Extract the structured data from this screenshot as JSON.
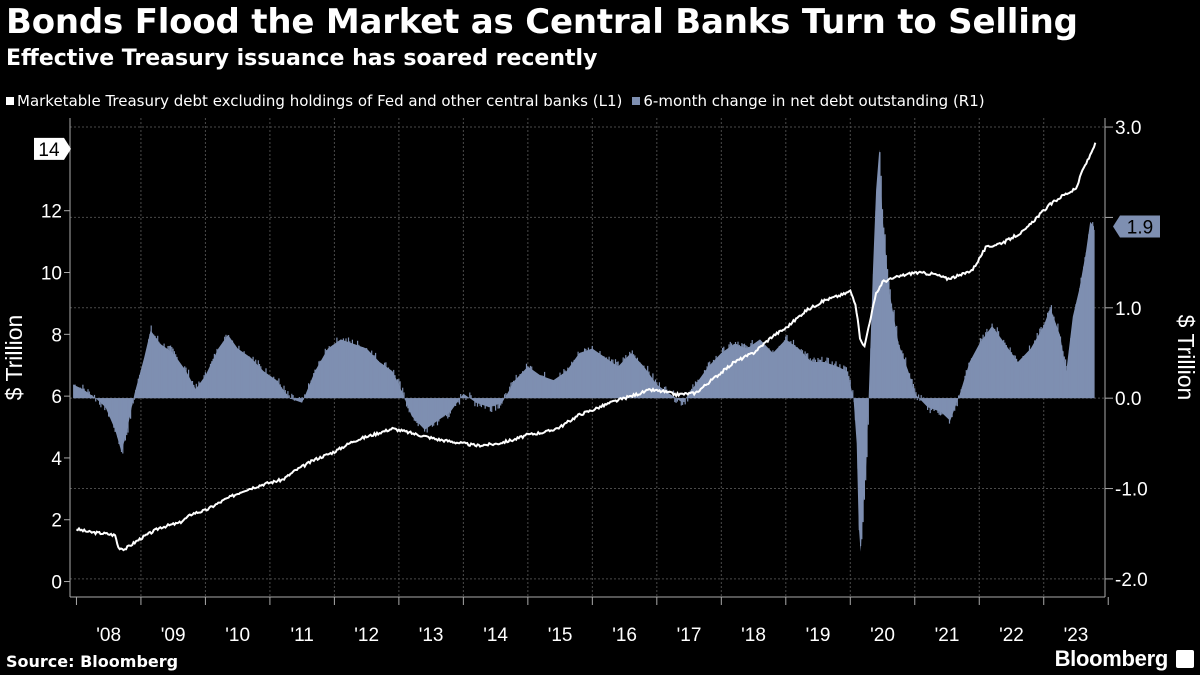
{
  "header": {
    "title": "Bonds Flood the Market as Central Banks Turn to Selling",
    "subtitle": "Effective Treasury issuance has soared recently"
  },
  "footer": {
    "source": "Source: Bloomberg",
    "brand": "Bloomberg"
  },
  "colors": {
    "background": "#000000",
    "line": "#ffffff",
    "area": "#7e8fb1",
    "grid": "#555555"
  },
  "chart_data": {
    "type": "line",
    "title": "Bonds Flood the Market as Central Banks Turn to Selling",
    "subtitle": "Effective Treasury issuance has soared recently",
    "x_ticks": [
      "'08",
      "'09",
      "'10",
      "'11",
      "'12",
      "'13",
      "'14",
      "'15",
      "'16",
      "'17",
      "'18",
      "'19",
      "'20",
      "'21",
      "'22",
      "'23"
    ],
    "x_range": [
      2007.9,
      2023.95
    ],
    "y_left": {
      "label": "$ Trillion",
      "range": [
        -0.5,
        15
      ],
      "ticks": [
        0,
        2,
        4,
        6,
        8,
        10,
        12,
        14
      ]
    },
    "y_right": {
      "label": "$ Trillion",
      "range": [
        -2.2,
        3.1
      ],
      "ticks": [
        -2.0,
        -1.0,
        0.0,
        1.0,
        2.0,
        3.0
      ],
      "tick_labels": [
        "-2.0",
        "-1.0",
        "0.0",
        "1.0",
        "",
        "3.0"
      ]
    },
    "grid": true,
    "legend_position": "top-left",
    "series": [
      {
        "name": "Marketable Treasury debt excluding holdings of Fed and other central banks (L1)",
        "axis": "left",
        "style": "line",
        "color": "#ffffff",
        "last_value_label": "14",
        "points": [
          [
            2008.0,
            1.7
          ],
          [
            2008.2,
            1.6
          ],
          [
            2008.45,
            1.55
          ],
          [
            2008.6,
            1.5
          ],
          [
            2008.65,
            1.1
          ],
          [
            2008.75,
            1.05
          ],
          [
            2009.0,
            1.4
          ],
          [
            2009.3,
            1.75
          ],
          [
            2009.6,
            1.9
          ],
          [
            2009.8,
            2.2
          ],
          [
            2010.0,
            2.3
          ],
          [
            2010.3,
            2.65
          ],
          [
            2010.6,
            2.95
          ],
          [
            2010.9,
            3.15
          ],
          [
            2011.2,
            3.3
          ],
          [
            2011.4,
            3.6
          ],
          [
            2011.7,
            3.95
          ],
          [
            2012.0,
            4.2
          ],
          [
            2012.3,
            4.55
          ],
          [
            2012.6,
            4.75
          ],
          [
            2012.9,
            4.95
          ],
          [
            2013.1,
            4.85
          ],
          [
            2013.3,
            4.75
          ],
          [
            2013.6,
            4.6
          ],
          [
            2013.9,
            4.5
          ],
          [
            2014.2,
            4.4
          ],
          [
            2014.5,
            4.45
          ],
          [
            2014.8,
            4.6
          ],
          [
            2015.0,
            4.75
          ],
          [
            2015.3,
            4.85
          ],
          [
            2015.5,
            5.0
          ],
          [
            2015.8,
            5.4
          ],
          [
            2016.0,
            5.55
          ],
          [
            2016.3,
            5.8
          ],
          [
            2016.6,
            6.0
          ],
          [
            2016.9,
            6.2
          ],
          [
            2017.1,
            6.15
          ],
          [
            2017.3,
            6.05
          ],
          [
            2017.6,
            6.1
          ],
          [
            2017.9,
            6.6
          ],
          [
            2018.2,
            7.1
          ],
          [
            2018.5,
            7.4
          ],
          [
            2018.8,
            7.95
          ],
          [
            2019.0,
            8.2
          ],
          [
            2019.3,
            8.75
          ],
          [
            2019.6,
            9.1
          ],
          [
            2019.9,
            9.3
          ],
          [
            2020.0,
            9.4
          ],
          [
            2020.08,
            9.0
          ],
          [
            2020.15,
            7.9
          ],
          [
            2020.22,
            7.6
          ],
          [
            2020.3,
            8.4
          ],
          [
            2020.4,
            9.3
          ],
          [
            2020.5,
            9.7
          ],
          [
            2020.8,
            9.9
          ],
          [
            2021.0,
            10.0
          ],
          [
            2021.3,
            9.95
          ],
          [
            2021.5,
            9.8
          ],
          [
            2021.7,
            9.9
          ],
          [
            2021.9,
            10.1
          ],
          [
            2022.1,
            10.8
          ],
          [
            2022.4,
            11.0
          ],
          [
            2022.7,
            11.35
          ],
          [
            2022.9,
            11.8
          ],
          [
            2023.1,
            12.2
          ],
          [
            2023.3,
            12.5
          ],
          [
            2023.5,
            12.7
          ],
          [
            2023.6,
            13.3
          ],
          [
            2023.7,
            13.7
          ],
          [
            2023.8,
            14.2
          ]
        ]
      },
      {
        "name": "6-month change in net debt outstanding (R1)",
        "axis": "right",
        "style": "area",
        "color": "#7e8fb1",
        "last_value_label": "1.9",
        "points": [
          [
            2007.95,
            0.15
          ],
          [
            2008.1,
            0.1
          ],
          [
            2008.3,
            0.0
          ],
          [
            2008.45,
            -0.1
          ],
          [
            2008.6,
            -0.35
          ],
          [
            2008.7,
            -0.6
          ],
          [
            2008.8,
            -0.3
          ],
          [
            2008.9,
            0.05
          ],
          [
            2009.05,
            0.45
          ],
          [
            2009.15,
            0.75
          ],
          [
            2009.3,
            0.6
          ],
          [
            2009.5,
            0.5
          ],
          [
            2009.7,
            0.3
          ],
          [
            2009.85,
            0.1
          ],
          [
            2010.0,
            0.25
          ],
          [
            2010.2,
            0.55
          ],
          [
            2010.35,
            0.7
          ],
          [
            2010.5,
            0.55
          ],
          [
            2010.7,
            0.45
          ],
          [
            2010.9,
            0.3
          ],
          [
            2011.1,
            0.2
          ],
          [
            2011.3,
            0.0
          ],
          [
            2011.5,
            -0.05
          ],
          [
            2011.7,
            0.3
          ],
          [
            2011.9,
            0.55
          ],
          [
            2012.1,
            0.65
          ],
          [
            2012.3,
            0.6
          ],
          [
            2012.5,
            0.55
          ],
          [
            2012.7,
            0.4
          ],
          [
            2012.9,
            0.3
          ],
          [
            2013.0,
            0.15
          ],
          [
            2013.2,
            -0.2
          ],
          [
            2013.4,
            -0.35
          ],
          [
            2013.6,
            -0.25
          ],
          [
            2013.8,
            -0.15
          ],
          [
            2014.0,
            0.05
          ],
          [
            2014.2,
            -0.05
          ],
          [
            2014.4,
            -0.1
          ],
          [
            2014.6,
            -0.05
          ],
          [
            2014.8,
            0.2
          ],
          [
            2015.0,
            0.35
          ],
          [
            2015.2,
            0.25
          ],
          [
            2015.4,
            0.2
          ],
          [
            2015.6,
            0.3
          ],
          [
            2015.8,
            0.5
          ],
          [
            2016.0,
            0.55
          ],
          [
            2016.2,
            0.45
          ],
          [
            2016.4,
            0.35
          ],
          [
            2016.6,
            0.5
          ],
          [
            2016.8,
            0.35
          ],
          [
            2017.0,
            0.15
          ],
          [
            2017.2,
            0.05
          ],
          [
            2017.4,
            -0.05
          ],
          [
            2017.6,
            0.15
          ],
          [
            2017.8,
            0.35
          ],
          [
            2018.0,
            0.5
          ],
          [
            2018.2,
            0.6
          ],
          [
            2018.4,
            0.55
          ],
          [
            2018.6,
            0.65
          ],
          [
            2018.8,
            0.5
          ],
          [
            2019.0,
            0.65
          ],
          [
            2019.2,
            0.55
          ],
          [
            2019.4,
            0.4
          ],
          [
            2019.6,
            0.4
          ],
          [
            2019.8,
            0.35
          ],
          [
            2019.95,
            0.3
          ],
          [
            2020.05,
            0.0
          ],
          [
            2020.1,
            -0.5
          ],
          [
            2020.13,
            -1.4
          ],
          [
            2020.16,
            -1.7
          ],
          [
            2020.2,
            -1.2
          ],
          [
            2020.25,
            -0.7
          ],
          [
            2020.3,
            0.3
          ],
          [
            2020.35,
            1.4
          ],
          [
            2020.4,
            2.3
          ],
          [
            2020.45,
            2.75
          ],
          [
            2020.5,
            2.0
          ],
          [
            2020.55,
            1.6
          ],
          [
            2020.6,
            1.2
          ],
          [
            2020.75,
            0.6
          ],
          [
            2020.9,
            0.3
          ],
          [
            2021.0,
            0.05
          ],
          [
            2021.2,
            -0.1
          ],
          [
            2021.4,
            -0.15
          ],
          [
            2021.55,
            -0.25
          ],
          [
            2021.7,
            0.05
          ],
          [
            2021.85,
            0.4
          ],
          [
            2022.0,
            0.6
          ],
          [
            2022.2,
            0.8
          ],
          [
            2022.4,
            0.6
          ],
          [
            2022.6,
            0.4
          ],
          [
            2022.8,
            0.55
          ],
          [
            2023.0,
            0.8
          ],
          [
            2023.1,
            1.0
          ],
          [
            2023.25,
            0.7
          ],
          [
            2023.35,
            0.3
          ],
          [
            2023.45,
            0.9
          ],
          [
            2023.55,
            1.2
          ],
          [
            2023.65,
            1.6
          ],
          [
            2023.72,
            1.95
          ],
          [
            2023.78,
            1.9
          ]
        ]
      }
    ]
  }
}
